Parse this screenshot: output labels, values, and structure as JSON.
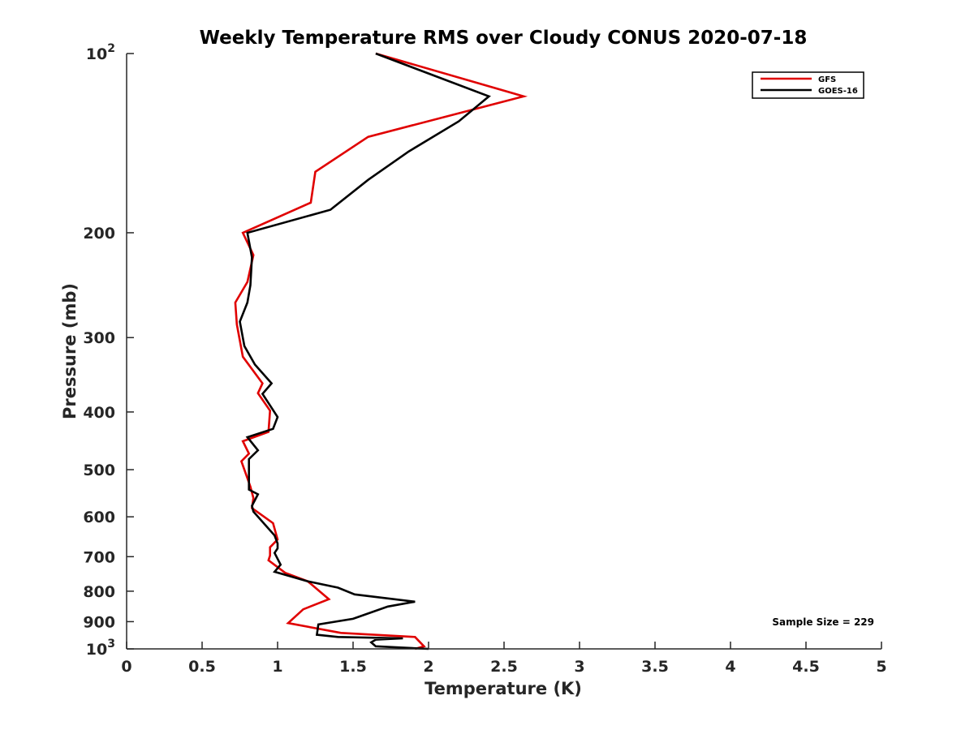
{
  "chart_data": {
    "type": "line",
    "title": "Weekly Temperature RMS over Cloudy CONUS 2020-07-18",
    "xlabel": "Temperature (K)",
    "ylabel": "Pressure (mb)",
    "xlim": [
      0,
      5
    ],
    "ylim": [
      100,
      1000
    ],
    "y_scale": "log",
    "y_reversed": true,
    "grid": false,
    "legend_position": "top-right",
    "x_ticks": [
      0,
      0.5,
      1,
      1.5,
      2,
      2.5,
      3,
      3.5,
      4,
      4.5,
      5
    ],
    "x_tick_labels": [
      "0",
      "0.5",
      "1",
      "1.5",
      "2",
      "2.5",
      "3",
      "3.5",
      "4",
      "4.5",
      "5"
    ],
    "y_ticks": [
      {
        "value": 100,
        "base": "10",
        "exp": "2",
        "label": ""
      },
      {
        "value": 200,
        "label": "200"
      },
      {
        "value": 300,
        "label": "300"
      },
      {
        "value": 400,
        "label": "400"
      },
      {
        "value": 500,
        "label": "500"
      },
      {
        "value": 600,
        "label": "600"
      },
      {
        "value": 700,
        "label": "700"
      },
      {
        "value": 800,
        "label": "800"
      },
      {
        "value": 900,
        "label": "900"
      },
      {
        "value": 1000,
        "base": "10",
        "exp": "3",
        "label": ""
      }
    ],
    "annotation": "Sample Size = 229",
    "series": [
      {
        "name": "GFS",
        "color": "#e00000",
        "x": [
          1.65,
          2.63,
          1.6,
          1.25,
          1.22,
          0.77,
          0.84,
          0.8,
          0.72,
          0.73,
          0.77,
          0.9,
          0.87,
          0.95,
          0.94,
          0.77,
          0.81,
          0.76,
          0.82,
          0.84,
          0.83,
          0.97,
          1.0,
          0.95,
          0.95,
          0.94,
          1.05,
          1.2,
          1.34,
          1.17,
          1.07,
          1.42,
          1.91,
          1.97,
          1.91
        ],
        "y": [
          100,
          118,
          138,
          158,
          178,
          200,
          218,
          242,
          262,
          285,
          323,
          358,
          372,
          398,
          432,
          448,
          470,
          484,
          534,
          558,
          580,
          615,
          655,
          675,
          697,
          710,
          745,
          770,
          825,
          858,
          905,
          940,
          955,
          990,
          1000
        ]
      },
      {
        "name": "GOES-16",
        "color": "#000000",
        "x": [
          1.65,
          2.4,
          2.2,
          1.87,
          1.6,
          1.35,
          0.8,
          0.83,
          0.82,
          0.8,
          0.75,
          0.78,
          0.85,
          0.96,
          0.9,
          0.95,
          1.0,
          0.97,
          0.8,
          0.87,
          0.81,
          0.81,
          0.87,
          0.83,
          0.84,
          0.98,
          1.0,
          1.0,
          0.98,
          1.02,
          0.98,
          1.2,
          1.4,
          1.51,
          1.91,
          1.73,
          1.5,
          1.27,
          1.26,
          1.4,
          1.83,
          1.65,
          1.62,
          1.65,
          2.0
        ],
        "y": [
          100,
          118,
          130,
          146,
          163,
          183,
          200,
          220,
          245,
          262,
          282,
          310,
          333,
          358,
          373,
          390,
          408,
          427,
          441,
          464,
          480,
          540,
          550,
          575,
          588,
          645,
          665,
          678,
          690,
          722,
          742,
          770,
          789,
          810,
          833,
          849,
          890,
          910,
          947,
          955,
          960,
          965,
          975,
          990,
          1000
        ]
      }
    ]
  }
}
